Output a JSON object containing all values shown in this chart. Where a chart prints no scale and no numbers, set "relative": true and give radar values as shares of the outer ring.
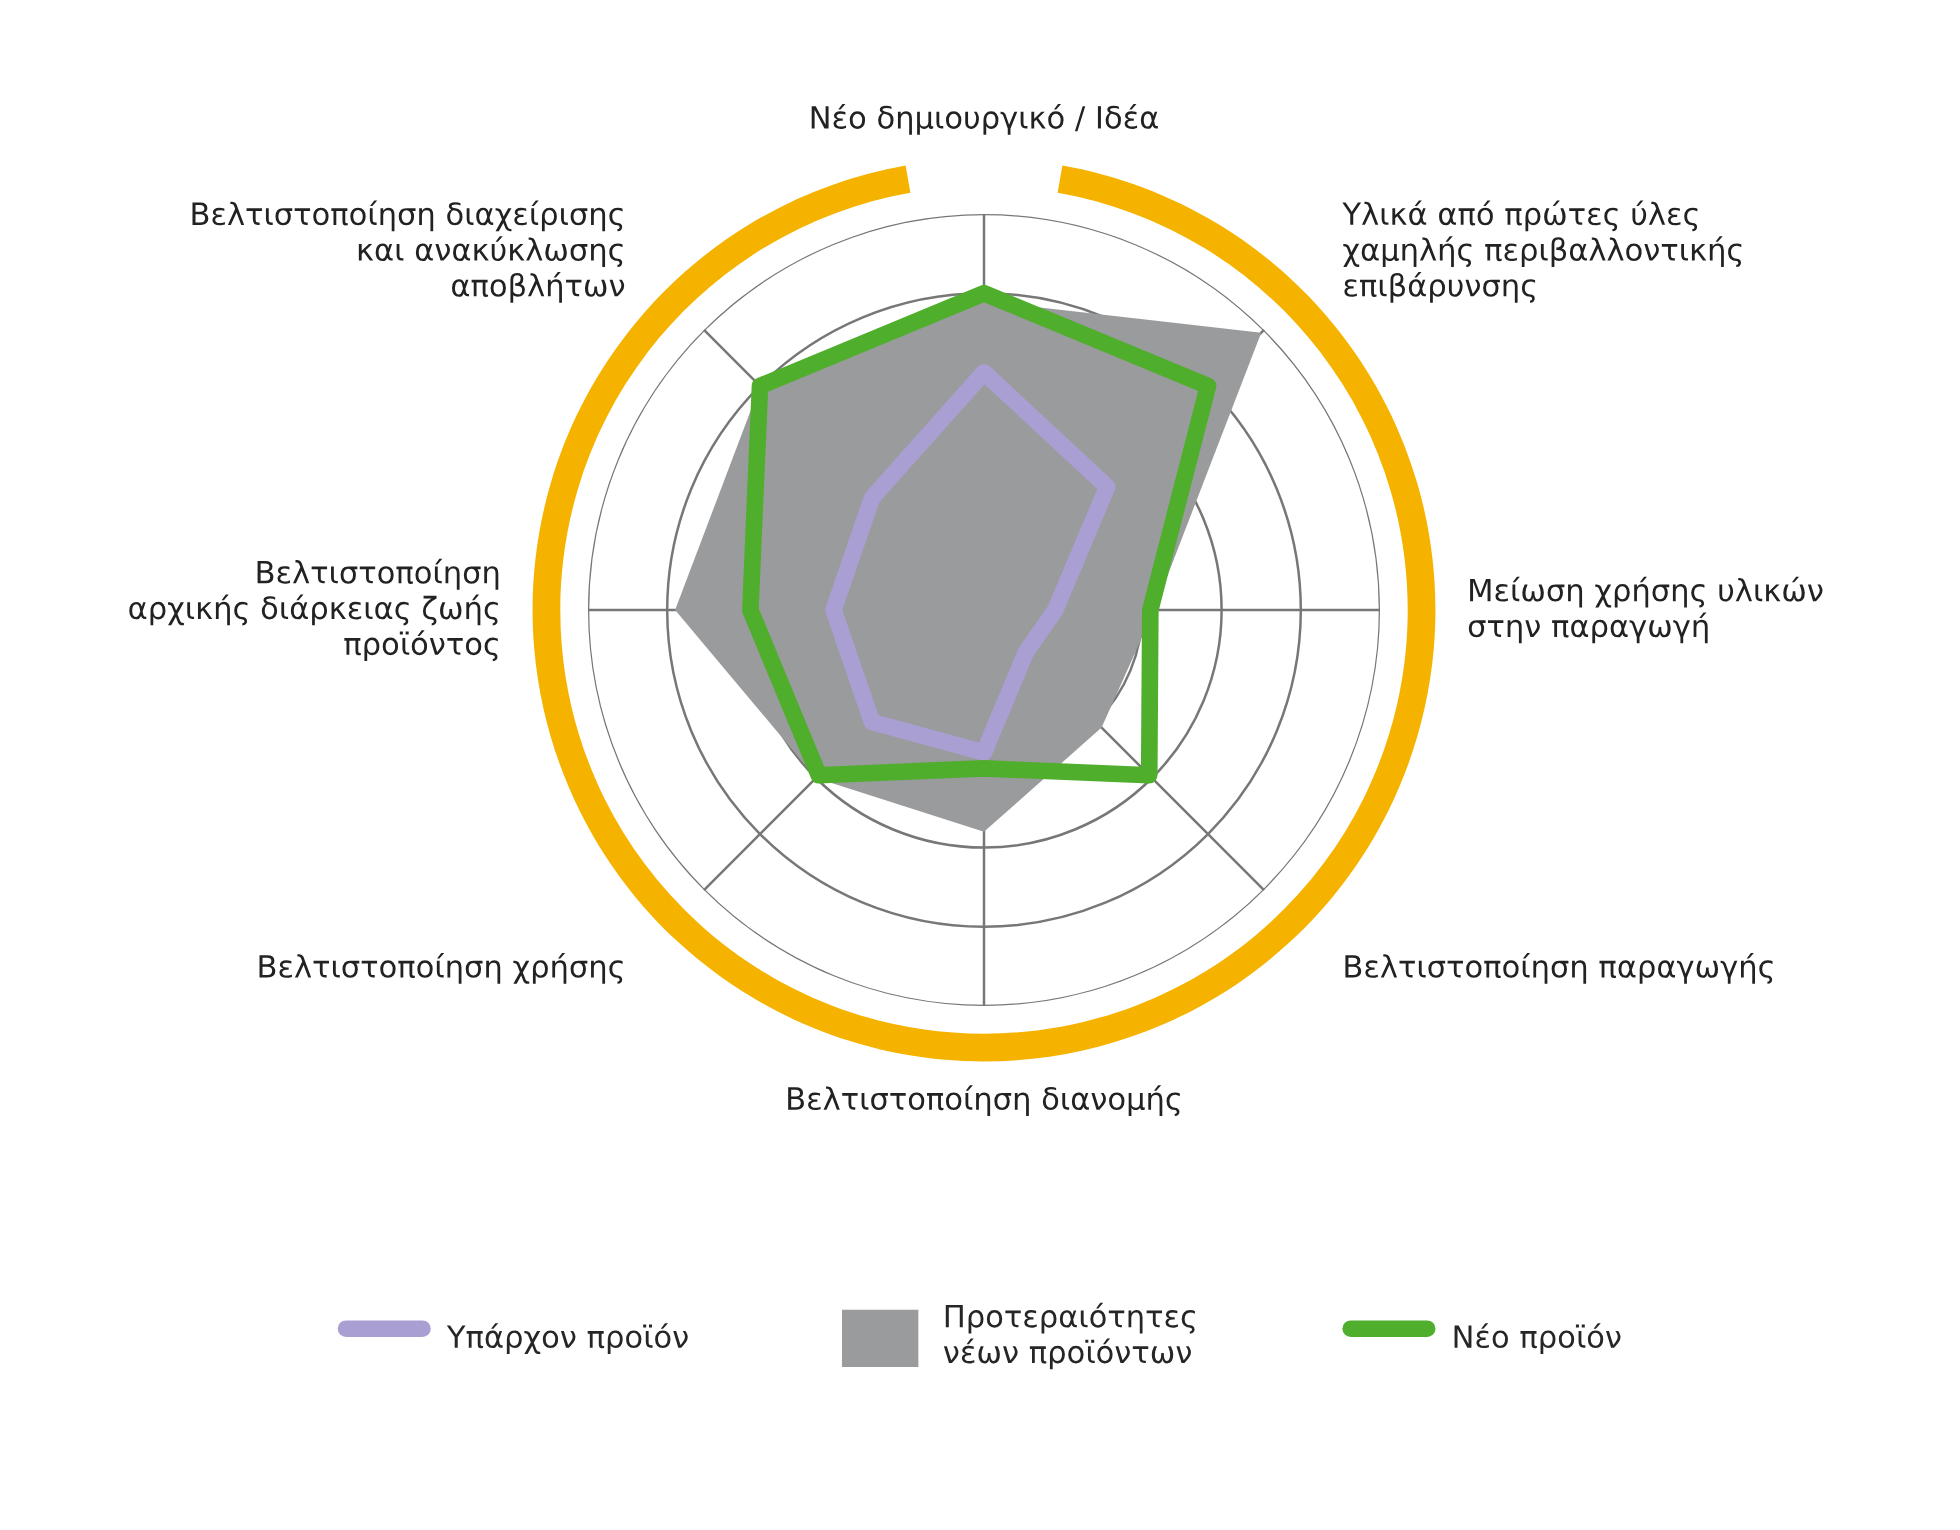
{
  "chart_data": {
    "type": "radar",
    "relative": true,
    "grid": true,
    "legend": "bottom",
    "categories": [
      "Νέο δημιουργικό / Ιδέα",
      "Υλικά από πρώτες ύλες\nχαμηλής περιβαλλοντικής\nεπιβάρυνσης",
      "Μείωση χρήσης υλικών\nστην παραγωγή",
      "Βελτιστοποίηση παραγωγής",
      "Βελτιστοποίηση διανομής",
      "Βελτιστοποίηση χρήσης",
      "Βελτιστοποίηση\nαρχικής διάρκειας ζωής\nπροϊόντος",
      "Βελτιστοποίηση διαχείρισης\nκαι ανακύκλωσης\nαποβλήτων"
    ],
    "series": [
      {
        "name": "Υπάρχον προϊόν",
        "color": "#a99fd2",
        "values": [
          0.6,
          0.44,
          0.18,
          0.15,
          0.36,
          0.4,
          0.38,
          0.4
        ]
      },
      {
        "name": "Προτεραιότητες\nνέων προϊόντων",
        "type": "area",
        "color": "#9a9b9d",
        "values": [
          0.78,
          0.99,
          0.43,
          0.42,
          0.56,
          0.6,
          0.78,
          0.8
        ]
      },
      {
        "name": "Νέο προϊόν",
        "color": "#4fae2c",
        "values": [
          0.8,
          0.8,
          0.42,
          0.59,
          0.4,
          0.59,
          0.59,
          0.8
        ]
      }
    ]
  }
}
